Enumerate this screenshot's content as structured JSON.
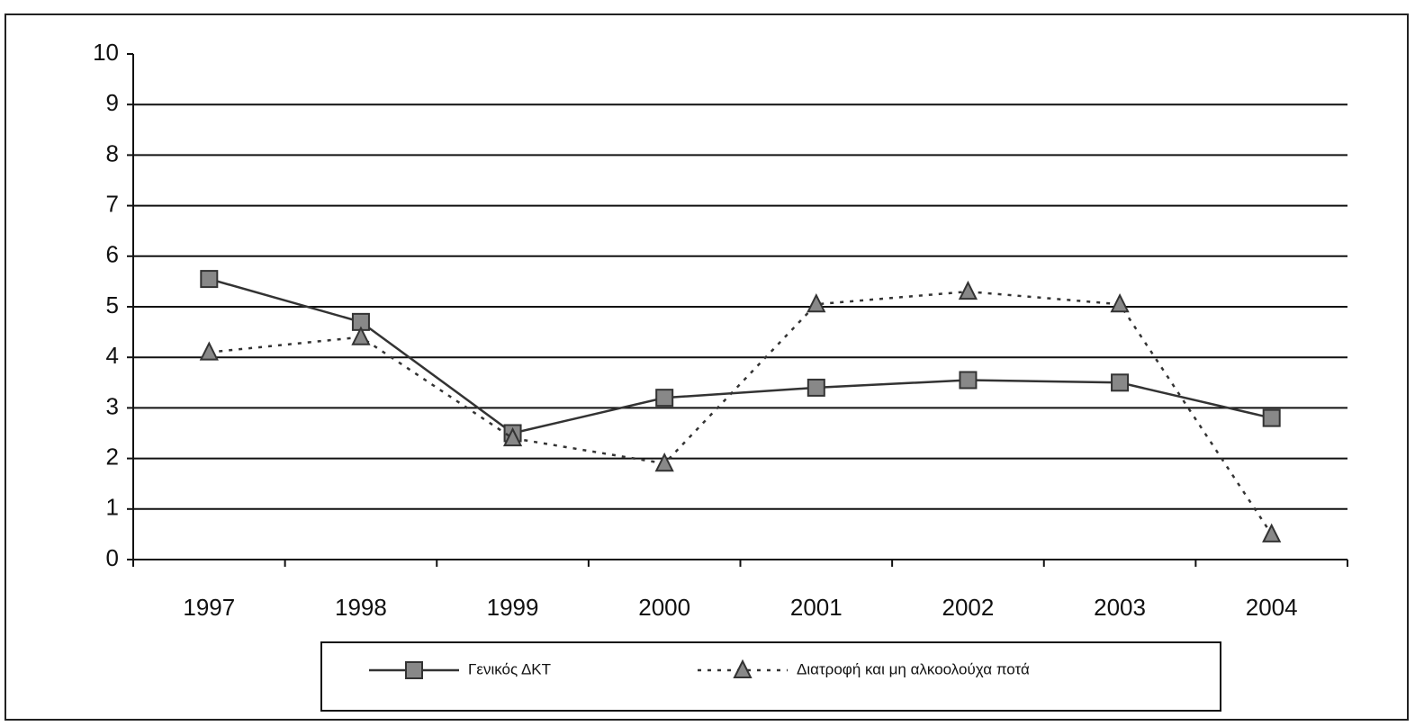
{
  "chart_data": {
    "type": "line",
    "categories": [
      "1997",
      "1998",
      "1999",
      "2000",
      "2001",
      "2002",
      "2003",
      "2004"
    ],
    "series": [
      {
        "name": "Γενικός ΔΚΤ",
        "color": "#333333",
        "marker": "square",
        "dashed": false,
        "values": [
          5.55,
          4.7,
          2.5,
          3.2,
          3.4,
          3.55,
          3.5,
          2.8
        ]
      },
      {
        "name": "Διατροφή και μη αλκοολούχα ποτά",
        "color": "#333333",
        "marker": "triangle",
        "dashed": true,
        "values": [
          4.1,
          4.4,
          2.4,
          1.9,
          5.05,
          5.3,
          5.05,
          0.5
        ]
      }
    ],
    "ylim": [
      0,
      10
    ],
    "yticks": [
      0,
      1,
      2,
      3,
      4,
      5,
      6,
      7,
      8,
      9,
      10
    ],
    "grid": true,
    "legend": "bottom"
  }
}
